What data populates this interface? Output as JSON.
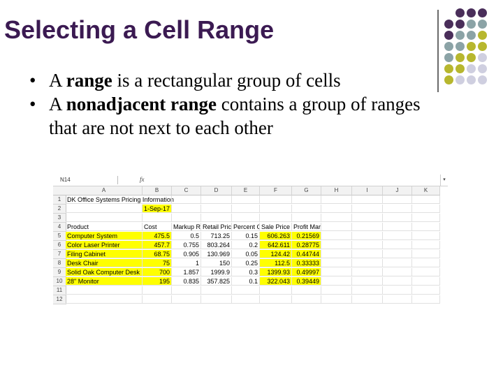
{
  "slide": {
    "title": "Selecting a Cell Range",
    "bullets": [
      {
        "pre": "A ",
        "bold": "range",
        "post": " is a rectangular group of cells"
      },
      {
        "pre": "A ",
        "bold": "nonadjacent range",
        "post": " contains a group of ranges that are not next to each other"
      }
    ],
    "bullet_symbol": "•"
  },
  "decoration": {
    "dot_colors": {
      "purple": "#4a2e5a",
      "teal": "#8ba3a6",
      "olive": "#b7b72e",
      "lavender": "#cfcfe0"
    }
  },
  "spreadsheet": {
    "name_box": "N14",
    "fx": "fx",
    "columns": [
      "A",
      "B",
      "C",
      "D",
      "E",
      "F",
      "G",
      "H",
      "I",
      "J",
      "K"
    ],
    "row_numbers": [
      "1",
      "2",
      "3",
      "4",
      "5",
      "6",
      "7",
      "8",
      "9",
      "10",
      "11",
      "12"
    ],
    "rows": [
      {
        "A": "DK Office Systems Pricing Information"
      },
      {
        "B": "1-Sep-17"
      },
      {},
      {
        "A": "Product",
        "B": "Cost",
        "C": "Markup R",
        "D": "Retail Pric",
        "E": "Percent O",
        "F": "Sale Price",
        "G": "Profit Margin"
      },
      {
        "A": "Computer System",
        "B": "475.5",
        "C": "0.5",
        "D": "713.25",
        "E": "0.15",
        "F": "606.263",
        "G": "0.21569"
      },
      {
        "A": "Color Laser Printer",
        "B": "457.7",
        "C": "0.755",
        "D": "803.264",
        "E": "0.2",
        "F": "642.611",
        "G": "0.28775"
      },
      {
        "A": "Filing Cabinet",
        "B": "68.75",
        "C": "0.905",
        "D": "130.969",
        "E": "0.05",
        "F": "124.42",
        "G": "0.44744"
      },
      {
        "A": "Desk Chair",
        "B": "75",
        "C": "1",
        "D": "150",
        "E": "0.25",
        "F": "112.5",
        "G": "0.33333"
      },
      {
        "A": "Solid Oak Computer Desk",
        "B": "700",
        "C": "1.857",
        "D": "1999.9",
        "E": "0.3",
        "F": "1399.93",
        "G": "0.49997"
      },
      {
        "A": "28\" Monitor",
        "B": "195",
        "C": "0.835",
        "D": "357.825",
        "E": "0.1",
        "F": "322.043",
        "G": "0.39449"
      },
      {},
      {}
    ],
    "highlight_color": "#ffff00"
  }
}
